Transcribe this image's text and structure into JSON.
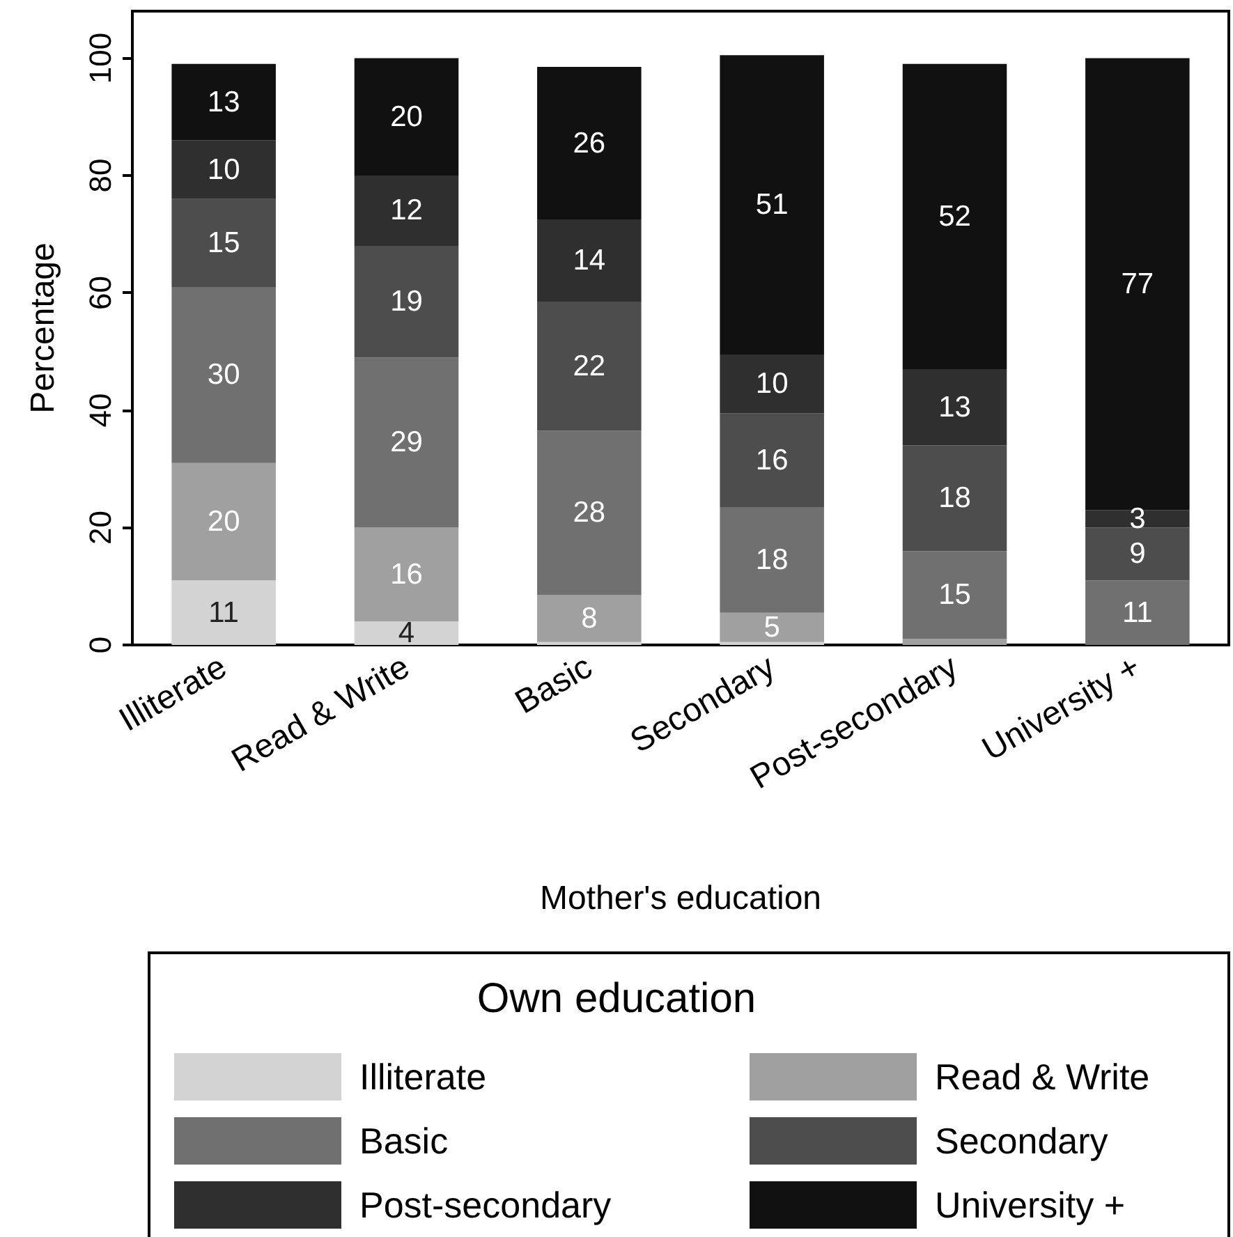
{
  "chart_data": {
    "type": "bar",
    "stacked": true,
    "xlabel": "Mother's education",
    "ylabel": "Percentage",
    "legend_title": "Own education",
    "legend": "bottom",
    "grid": false,
    "categories": [
      "Illiterate",
      "Read & Write",
      "Basic",
      "Secondary",
      "Post-secondary",
      "University +"
    ],
    "ylim": [
      0,
      108
    ],
    "yticks": [
      0,
      20,
      40,
      60,
      80,
      100
    ],
    "series": [
      {
        "name": "Illiterate",
        "color": "#d3d3d3",
        "values": [
          11,
          4,
          0.5,
          0.5,
          0,
          0
        ],
        "value_labels": [
          "11",
          "4",
          null,
          null,
          null,
          null
        ]
      },
      {
        "name": "Read & Write",
        "color": "#a0a0a0",
        "values": [
          20,
          16,
          8,
          5,
          1,
          0
        ],
        "value_labels": [
          "20",
          "16",
          "8",
          "5",
          null,
          null
        ]
      },
      {
        "name": "Basic",
        "color": "#707070",
        "values": [
          30,
          29,
          28,
          18,
          15,
          11
        ],
        "value_labels": [
          "30",
          "29",
          "28",
          "18",
          "15",
          "11"
        ]
      },
      {
        "name": "Secondary",
        "color": "#4d4d4d",
        "values": [
          15,
          19,
          22,
          16,
          18,
          9
        ],
        "value_labels": [
          "15",
          "19",
          "22",
          "16",
          "18",
          "9"
        ]
      },
      {
        "name": "Post-secondary",
        "color": "#2f2f2f",
        "values": [
          10,
          12,
          14,
          10,
          13,
          3
        ],
        "value_labels": [
          "10",
          "12",
          "14",
          "10",
          "13",
          "3"
        ]
      },
      {
        "name": "University +",
        "color": "#111111",
        "values": [
          13,
          20,
          26,
          51,
          52,
          77
        ],
        "value_labels": [
          "13",
          "20",
          "26",
          "51",
          "52",
          "77"
        ]
      }
    ]
  }
}
